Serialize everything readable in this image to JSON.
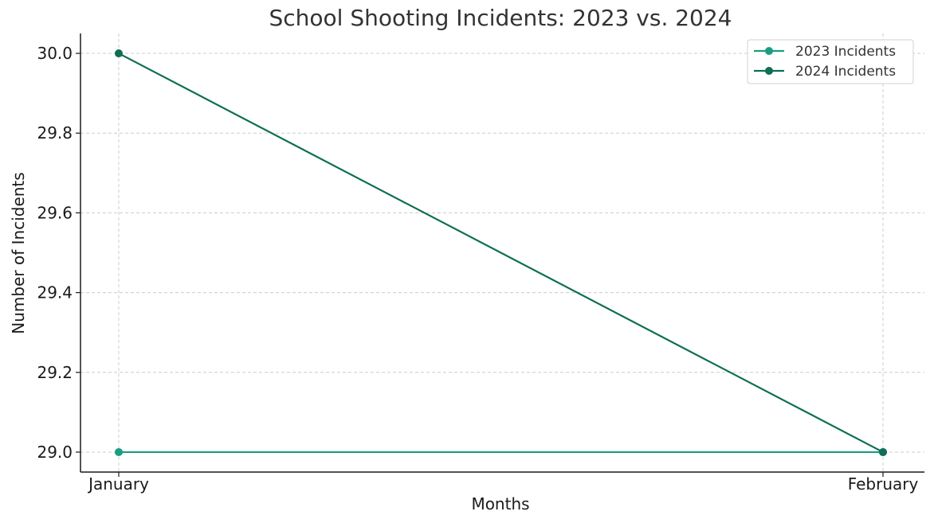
{
  "chart_data": {
    "type": "line",
    "title": "School Shooting Incidents: 2023 vs. 2024",
    "xlabel": "Months",
    "ylabel": "Number of Incidents",
    "categories": [
      "January",
      "February"
    ],
    "yticks": [
      "29.0",
      "29.2",
      "29.4",
      "29.6",
      "29.8",
      "30.0"
    ],
    "ylim": [
      28.95,
      30.05
    ],
    "grid": true,
    "legend_position": "top-right",
    "series": [
      {
        "name": "2023 Incidents",
        "values": [
          29,
          29
        ],
        "color": "#1a9e82"
      },
      {
        "name": "2024 Incidents",
        "values": [
          30,
          29
        ],
        "color": "#0f6e55"
      }
    ]
  }
}
